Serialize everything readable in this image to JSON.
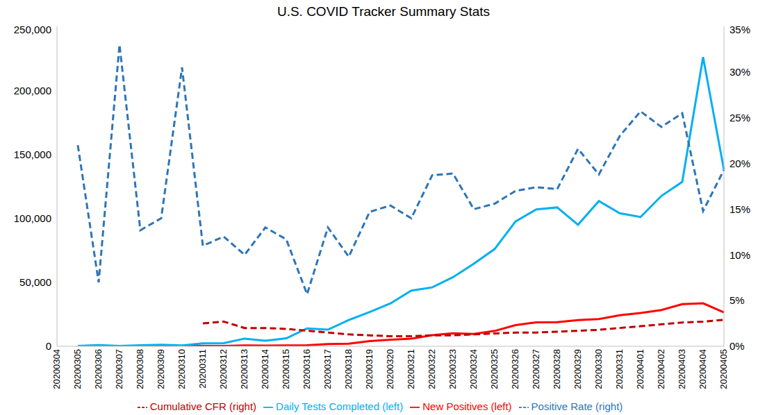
{
  "chart_data": {
    "type": "line",
    "title": "U.S. COVID Tracker Summary Stats",
    "categories": [
      "20200304",
      "20200305",
      "20200306",
      "20200307",
      "20200308",
      "20200309",
      "20200310",
      "20200311",
      "20200312",
      "20200313",
      "20200314",
      "20200315",
      "20200316",
      "20200317",
      "20200318",
      "20200319",
      "20200320",
      "20200321",
      "20200322",
      "20200323",
      "20200324",
      "20200325",
      "20200326",
      "20200327",
      "20200328",
      "20200329",
      "20200330",
      "20200331",
      "20200401",
      "20200402",
      "20200403",
      "20200404",
      "20200405"
    ],
    "series": [
      {
        "name": "New Positives (left)",
        "color": "#ff0000",
        "line_style": "solid",
        "values": [
          null,
          70,
          70,
          100,
          100,
          170,
          210,
          260,
          290,
          600,
          570,
          720,
          800,
          1700,
          2000,
          4000,
          5200,
          6000,
          8700,
          10200,
          9600,
          12000,
          16500,
          18700,
          18800,
          20500,
          21300,
          24200,
          26000,
          28300,
          32900,
          33600,
          26500
        ]
      },
      {
        "name": "Daily Tests Completed (left)",
        "color": "#00b0f0",
        "line_style": "solid",
        "values": [
          null,
          300,
          900,
          300,
          800,
          1200,
          700,
          2300,
          2400,
          6000,
          4300,
          6200,
          14000,
          13000,
          20500,
          26800,
          33500,
          43500,
          46000,
          54000,
          64500,
          76000,
          97500,
          107000,
          108500,
          95000,
          113500,
          104000,
          101000,
          117500,
          128500,
          226000,
          138000
        ]
      },
      {
        "name": "Positive Rate (right)",
        "color": "#2e75b6",
        "line_style": "dashed",
        "axis": "y2",
        "values": [
          null,
          22,
          7,
          33,
          12.7,
          14,
          30.5,
          11,
          12,
          10,
          13,
          11.7,
          5.7,
          13,
          9.8,
          14.7,
          15.4,
          14,
          18.7,
          18.9,
          15,
          15.6,
          17,
          17.4,
          17.2,
          21.6,
          18.8,
          23,
          25.7,
          24,
          25.5,
          14.8,
          19.3
        ]
      },
      {
        "name": "Cumulative CFR (right)",
        "color": "#c00000",
        "line_style": "dashed",
        "axis": "y2",
        "values": [
          null,
          null,
          null,
          null,
          null,
          null,
          null,
          2.5,
          2.7,
          2.0,
          2.0,
          1.9,
          1.7,
          1.5,
          1.3,
          1.2,
          1.1,
          1.1,
          1.2,
          1.2,
          1.3,
          1.4,
          1.5,
          1.5,
          1.6,
          1.7,
          1.8,
          2.0,
          2.2,
          2.4,
          2.6,
          2.7,
          2.9
        ]
      }
    ],
    "ylim": [
      0,
      250000
    ],
    "yticks": [
      0,
      {
        "value": 50000,
        "label": "50,000"
      },
      {
        "value": 100000,
        "label": "100,000"
      },
      {
        "value": 150000,
        "label": "150,000"
      },
      {
        "value": 200000,
        "label": "200,000"
      },
      {
        "value": 250000,
        "label": "250,000"
      }
    ],
    "y2lim": [
      0,
      35
    ],
    "y2ticks": [
      {
        "value": 0,
        "label": "0%"
      },
      {
        "value": 5,
        "label": "5%"
      },
      {
        "value": 10,
        "label": "10%"
      },
      {
        "value": 15,
        "label": "15%"
      },
      {
        "value": 20,
        "label": "20%"
      },
      {
        "value": 25,
        "label": "25%"
      },
      {
        "value": 30,
        "label": "30%"
      },
      {
        "value": 35,
        "label": "35%"
      }
    ],
    "grid": false,
    "legend": "bottom"
  }
}
